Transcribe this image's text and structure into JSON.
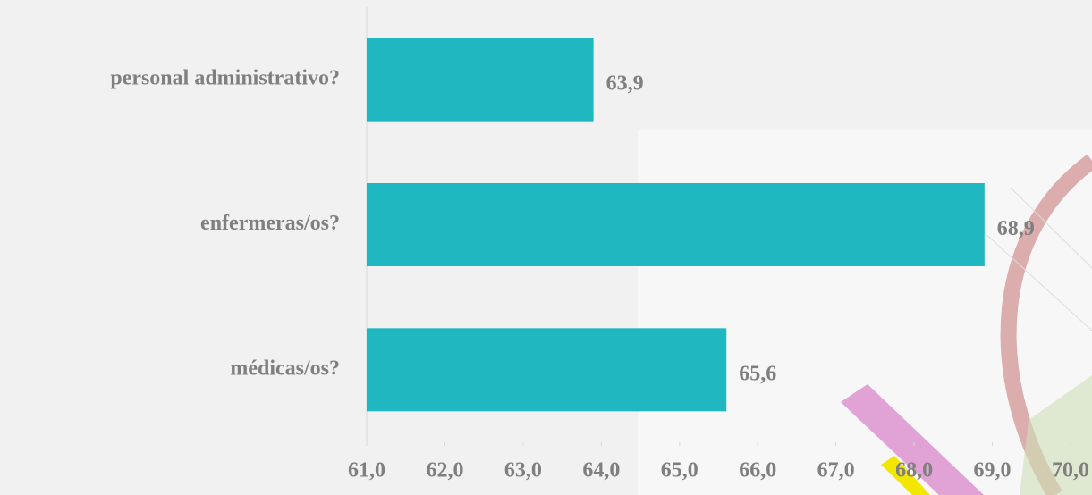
{
  "chart_data": {
    "type": "bar",
    "orientation": "horizontal",
    "categories": [
      "personal administrativo?",
      "enfermeras/os?",
      "médicas/os?"
    ],
    "values": [
      63.9,
      68.9,
      65.6
    ],
    "value_labels": [
      "63,9",
      "68,9",
      "65,6"
    ],
    "color": "#1fb8c1",
    "xlim": [
      61,
      70
    ],
    "xticks": [
      {
        "value": 61,
        "label": "61,0"
      },
      {
        "value": 62,
        "label": "62,0"
      },
      {
        "value": 63,
        "label": "63,0"
      },
      {
        "value": 64,
        "label": "64,0"
      },
      {
        "value": 65,
        "label": "65,0"
      },
      {
        "value": 66,
        "label": "66,0"
      },
      {
        "value": 67,
        "label": "67,0"
      },
      {
        "value": 68,
        "label": "68,0"
      },
      {
        "value": 69,
        "label": "69,0"
      },
      {
        "value": 70,
        "label": "70,0"
      }
    ]
  }
}
